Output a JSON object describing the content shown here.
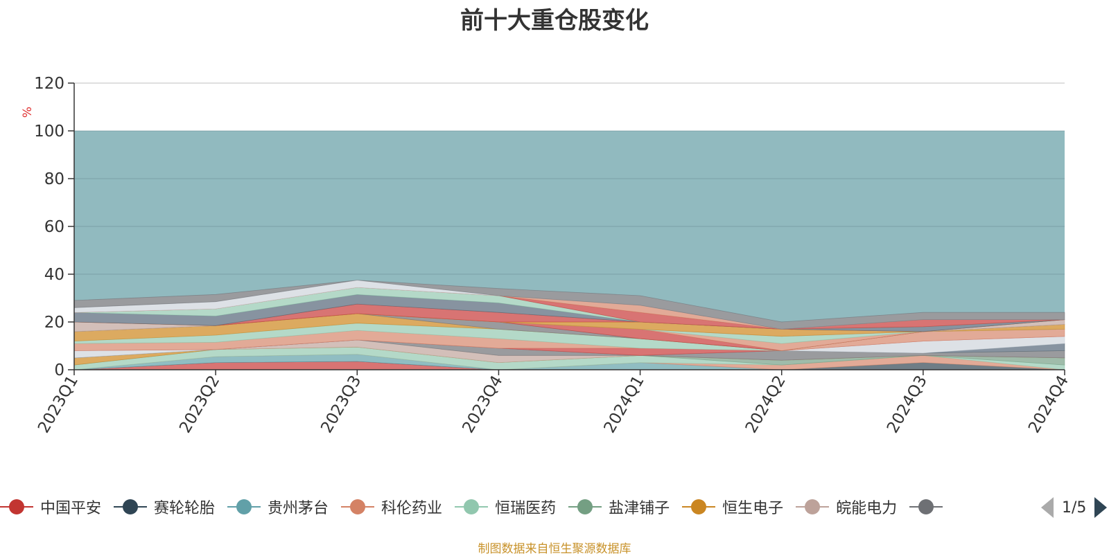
{
  "title": "前十大重仓股变化",
  "source_note": "制图数据来自恒生聚源数据库",
  "legend_pager": "1/5",
  "chart_data": {
    "type": "area",
    "title": "前十大重仓股变化",
    "ylabel": "%",
    "xlabel": "",
    "ylim": [
      0,
      120
    ],
    "yticks": [
      0,
      20,
      40,
      60,
      80,
      100,
      120
    ],
    "categories": [
      "2023Q1",
      "2023Q2",
      "2023Q3",
      "2023Q4",
      "2024Q1",
      "2024Q2",
      "2024Q3",
      "2024Q4"
    ],
    "grid": true,
    "stacked": true,
    "background_band": {
      "value": 100,
      "color": "#91babf"
    },
    "legend_position": "bottom",
    "series": [
      {
        "name": "中国平安",
        "color": "#c23531",
        "area_color": "#d87473",
        "values": [
          0,
          3,
          3.5,
          0,
          0,
          0,
          0,
          0
        ]
      },
      {
        "name": "赛轮轮胎",
        "color": "#2f4554",
        "area_color": "#6f7d86",
        "values": [
          0,
          0,
          0,
          0,
          0,
          0,
          3,
          0
        ]
      },
      {
        "name": "贵州茅台",
        "color": "#61a0a8",
        "area_color": "#90bdc2",
        "values": [
          0,
          2.5,
          3,
          0,
          3,
          0,
          0,
          0
        ]
      },
      {
        "name": "科伦药业",
        "color": "#d48265",
        "area_color": "#e2aa97",
        "values": [
          0,
          0,
          0,
          0,
          0,
          2,
          3,
          0
        ]
      },
      {
        "name": "恒瑞医药",
        "color": "#91c7ae",
        "area_color": "#b4d9c8",
        "values": [
          2,
          3,
          3,
          3,
          3,
          0,
          0,
          2
        ]
      },
      {
        "name": "盐津铺子",
        "color": "#749f83",
        "area_color": "#9fbcaa",
        "values": [
          0,
          0,
          0,
          0,
          0,
          2,
          0,
          3
        ]
      },
      {
        "name": "恒生电子",
        "color": "#ca8622",
        "area_color": "#dcaa60",
        "values": [
          3,
          0,
          0,
          0,
          0,
          0,
          0,
          0
        ]
      },
      {
        "name": "皖能电力",
        "color": "#bda29a",
        "area_color": "#d3bfb9",
        "values": [
          0,
          0,
          3,
          3,
          0,
          0,
          0,
          0
        ]
      },
      {
        "name": "",
        "color": "#6e7074",
        "area_color": "#9a9b9e",
        "values": [
          0,
          0,
          0,
          3,
          0,
          4,
          1,
          3
        ]
      },
      {
        "name": "",
        "color": "#546570",
        "area_color": "#8793a0",
        "values": [
          0,
          0,
          0,
          0,
          0,
          0,
          0,
          3
        ]
      },
      {
        "name": "",
        "color": "#c4ccd3",
        "area_color": "#dde1e6",
        "values": [
          3,
          0,
          0,
          0,
          0,
          0,
          5,
          3
        ]
      },
      {
        "name": "",
        "color": "#c23531",
        "area_color": "#d87473",
        "values": [
          0,
          0,
          0,
          0,
          3,
          0,
          0,
          0
        ]
      },
      {
        "name": "",
        "color": "#d48265",
        "area_color": "#e2aa97",
        "values": [
          3,
          3,
          4,
          4,
          0,
          0,
          4,
          3
        ]
      },
      {
        "name": "",
        "color": "#91c7ae",
        "area_color": "#b4d9c8",
        "values": [
          1,
          3,
          3,
          4,
          4,
          0,
          0,
          0
        ]
      },
      {
        "name": "",
        "color": "#ca8622",
        "area_color": "#dcaa60",
        "values": [
          4,
          4,
          4,
          0,
          0,
          0,
          0,
          2
        ]
      },
      {
        "name": "",
        "color": "#6e7074",
        "area_color": "#9a9b9e",
        "values": [
          0,
          0,
          0,
          3,
          0,
          0,
          0,
          0
        ]
      },
      {
        "name": "",
        "color": "#c23531",
        "area_color": "#d87473",
        "values": [
          0,
          0,
          0,
          0,
          4,
          0,
          0,
          0
        ]
      },
      {
        "name": "",
        "color": "#d48265",
        "area_color": "#e2aa97",
        "values": [
          0,
          0,
          0,
          0,
          0,
          3,
          0,
          0
        ]
      },
      {
        "name": "",
        "color": "#91c7ae",
        "area_color": "#b4d9c8",
        "values": [
          0,
          0,
          0,
          0,
          0,
          3,
          0,
          0
        ]
      },
      {
        "name": "",
        "color": "#bda29a",
        "area_color": "#d3bfb9",
        "values": [
          4,
          0,
          0,
          0,
          0,
          0,
          0,
          2
        ]
      },
      {
        "name": "",
        "color": "#ca8622",
        "area_color": "#dcaa60",
        "values": [
          0,
          0,
          0,
          0,
          3,
          3,
          0,
          0
        ]
      },
      {
        "name": "",
        "color": "#c23531",
        "area_color": "#d87473",
        "values": [
          0,
          0,
          4,
          4,
          0,
          0,
          0,
          0
        ]
      },
      {
        "name": "",
        "color": "#546570",
        "area_color": "#8793a0",
        "values": [
          4,
          4,
          4,
          4,
          0,
          0,
          2,
          0
        ]
      },
      {
        "name": "",
        "color": "#91c7ae",
        "area_color": "#b4d9c8",
        "values": [
          0,
          3,
          3,
          3,
          0,
          0,
          0,
          0
        ]
      },
      {
        "name": "",
        "color": "#c23531",
        "area_color": "#d87473",
        "values": [
          0,
          0,
          0,
          0,
          4,
          0,
          3,
          0
        ]
      },
      {
        "name": "",
        "color": "#d48265",
        "area_color": "#e2aa97",
        "values": [
          0,
          0,
          0,
          0,
          3,
          0,
          0,
          0
        ]
      },
      {
        "name": "",
        "color": "#c4ccd3",
        "area_color": "#dde1e6",
        "values": [
          2,
          3,
          3,
          0,
          0,
          0,
          0,
          0
        ]
      },
      {
        "name": "",
        "color": "#6e7074",
        "area_color": "#9a9b9e",
        "values": [
          3,
          3,
          0,
          3,
          4,
          3,
          3,
          3
        ]
      }
    ]
  }
}
